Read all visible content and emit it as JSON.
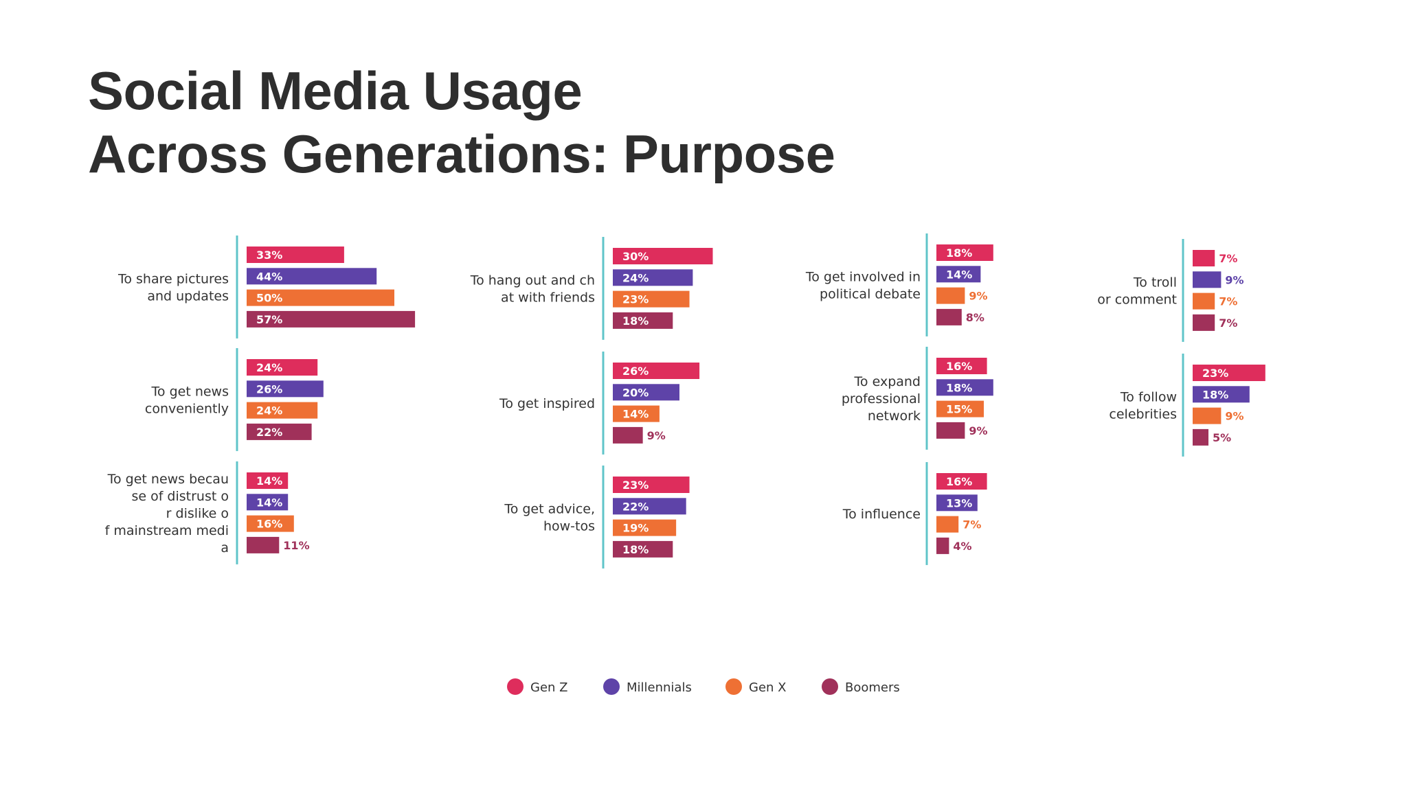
{
  "slide": {
    "title_line1": "Social Media Usage",
    "title_line2": "Across Generations: Purpose"
  },
  "colors": {
    "Gen Z": "#de2d5c",
    "Millennials": "#5e43a8",
    "Gen X": "#ee7034",
    "Boomers": "#a0315a",
    "divider": "#5fc4c9"
  },
  "chart_data": {
    "type": "bar",
    "orientation": "horizontal",
    "value_format": "percent",
    "legend": {
      "placement": "bottom-center",
      "entries": [
        "Gen Z",
        "Millennials",
        "Gen X",
        "Boomers"
      ]
    },
    "panels": [
      {
        "label": "To share pictures and updates",
        "values": [
          33,
          44,
          50,
          57
        ]
      },
      {
        "label": "To get news conveniently",
        "values": [
          24,
          26,
          24,
          22
        ]
      },
      {
        "label": "To get news because of distrust or dislike of mainstream media",
        "values": [
          14,
          14,
          16,
          11
        ]
      },
      {
        "label": "To hang out and chat with friends",
        "values": [
          30,
          24,
          23,
          18
        ]
      },
      {
        "label": "To get inspired",
        "values": [
          26,
          20,
          14,
          9
        ]
      },
      {
        "label": "To get advice, how-tos",
        "values": [
          23,
          22,
          19,
          18
        ]
      },
      {
        "label": "To get involved in political debate",
        "values": [
          18,
          14,
          9,
          8
        ]
      },
      {
        "label": "To expand professional network",
        "values": [
          16,
          18,
          15,
          9
        ]
      },
      {
        "label": "To influence",
        "values": [
          16,
          13,
          7,
          4
        ]
      },
      {
        "label": "To troll or comment",
        "values": [
          7,
          9,
          7,
          7
        ]
      },
      {
        "label": "To follow celebrities",
        "values": [
          23,
          18,
          9,
          5
        ]
      }
    ]
  }
}
